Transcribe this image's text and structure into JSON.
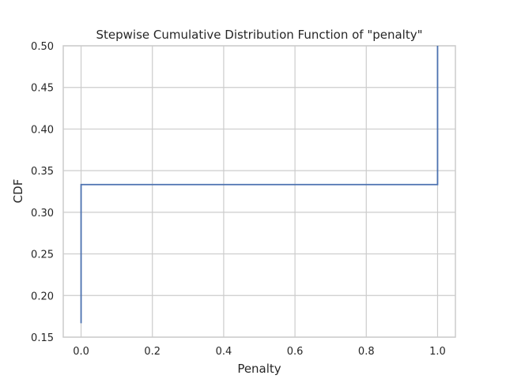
{
  "chart_data": {
    "type": "line",
    "style": "step",
    "title": "Stepwise Cumulative Distribution Function of \"penalty\"",
    "xlabel": "Penalty",
    "ylabel": "CDF",
    "xlim": [
      -0.05,
      1.05
    ],
    "ylim": [
      0.15,
      0.5
    ],
    "xticks": [
      0.0,
      0.2,
      0.4,
      0.6,
      0.8,
      1.0
    ],
    "xtick_labels": [
      "0.0",
      "0.2",
      "0.4",
      "0.6",
      "0.8",
      "1.0"
    ],
    "yticks": [
      0.15,
      0.2,
      0.25,
      0.3,
      0.35,
      0.4,
      0.45,
      0.5
    ],
    "ytick_labels": [
      "0.15",
      "0.20",
      "0.25",
      "0.30",
      "0.35",
      "0.40",
      "0.45",
      "0.50"
    ],
    "grid": true,
    "series": [
      {
        "color": "#4c72b0",
        "points": [
          {
            "x": 0.0,
            "y": 0.1667
          },
          {
            "x": 0.0,
            "y": 0.3333
          },
          {
            "x": 1.0,
            "y": 0.3333
          },
          {
            "x": 1.0,
            "y": 0.5
          }
        ]
      }
    ]
  }
}
